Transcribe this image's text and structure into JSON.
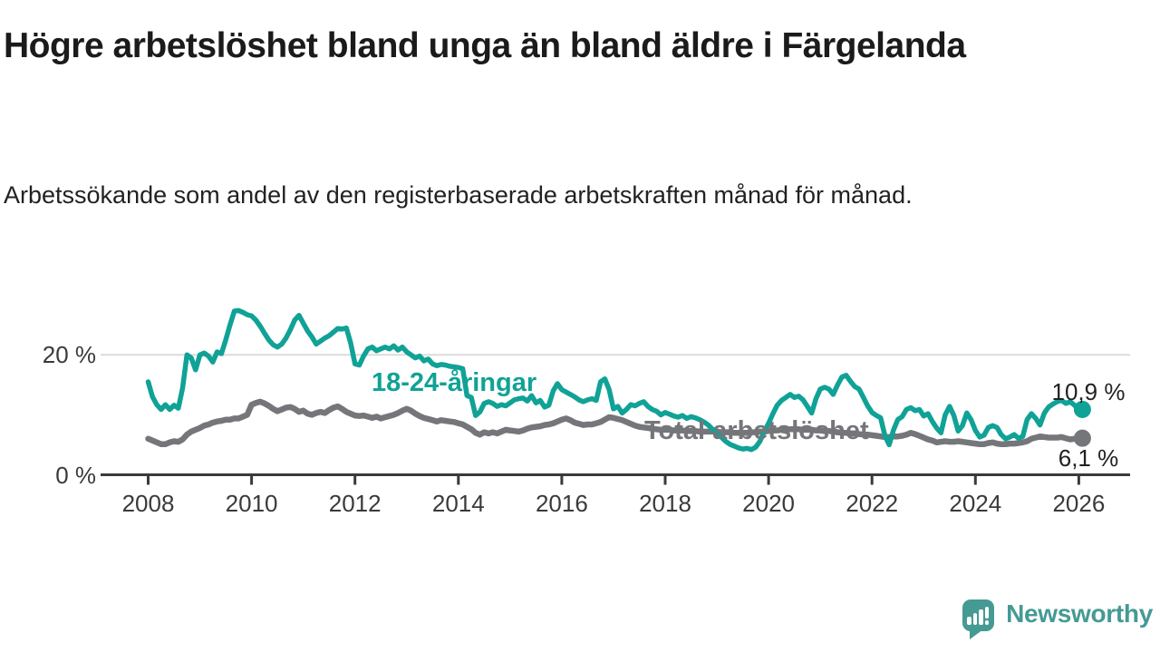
{
  "header": {
    "title": "Högre arbetslöshet bland unga än bland äldre i Färgelanda",
    "subtitle": "Arbetssökande som andel av den registerbaserade arbetskraften månad för månad."
  },
  "colors": {
    "young_series": "#10a296",
    "total_series": "#75767a",
    "axis": "#3a3a3a",
    "gridline": "#dcdcdc",
    "text": "#222222",
    "brand_teal": "#459a94"
  },
  "chart_data": {
    "type": "line",
    "title": "Högre arbetslöshet bland unga än bland äldre i Färgelanda",
    "xlabel": "",
    "ylabel": "Arbetssökande som andel av den registerbaserade arbetskraften",
    "x_unit": "year-month",
    "x_start": 2008.0,
    "points_per_year": 12,
    "xlim": [
      2008,
      2026.1
    ],
    "ylim": [
      0,
      28
    ],
    "grid": "horizontal line at 20 % only",
    "legend_position": "inline labels on lines",
    "x_ticks": [
      2008,
      2010,
      2012,
      2014,
      2016,
      2018,
      2020,
      2022,
      2024,
      2026
    ],
    "y_ticks": [
      {
        "value": 0,
        "label": "0 %"
      },
      {
        "value": 20,
        "label": "20 %"
      }
    ],
    "series": [
      {
        "name": "Total arbetslöshet",
        "label_text": "Total arbetslöshet",
        "end_label": "6,1 %",
        "end_value": 6.1,
        "color": "#75767a",
        "stroke_width": 6.5,
        "values": [
          6.0,
          5.7,
          5.4,
          5.1,
          5.1,
          5.4,
          5.6,
          5.5,
          5.9,
          6.7,
          7.2,
          7.5,
          7.8,
          8.2,
          8.4,
          8.7,
          8.9,
          9.0,
          9.2,
          9.2,
          9.4,
          9.4,
          9.7,
          10.0,
          11.7,
          12.0,
          12.2,
          11.9,
          11.5,
          11.0,
          10.6,
          10.9,
          11.2,
          11.3,
          11.0,
          10.5,
          10.7,
          10.2,
          10.0,
          10.3,
          10.5,
          10.3,
          10.8,
          11.2,
          11.4,
          11.0,
          10.5,
          10.2,
          9.9,
          9.8,
          9.9,
          9.7,
          9.5,
          9.7,
          9.4,
          9.6,
          9.8,
          10.0,
          10.3,
          10.7,
          11.0,
          10.7,
          10.2,
          9.8,
          9.5,
          9.3,
          9.1,
          8.9,
          9.1,
          9.0,
          8.9,
          8.8,
          8.6,
          8.4,
          8.0,
          7.6,
          7.0,
          6.7,
          7.1,
          6.9,
          7.1,
          6.9,
          7.2,
          7.5,
          7.4,
          7.3,
          7.2,
          7.4,
          7.7,
          7.9,
          8.0,
          8.1,
          8.3,
          8.4,
          8.6,
          8.9,
          9.2,
          9.4,
          9.1,
          8.7,
          8.5,
          8.3,
          8.4,
          8.4,
          8.6,
          8.8,
          9.2,
          9.6,
          9.5,
          9.3,
          9.1,
          8.8,
          8.5,
          8.2,
          8.0,
          7.9,
          7.8,
          7.7,
          7.6,
          7.5,
          7.5,
          7.5,
          7.4,
          7.4,
          7.4,
          7.3,
          7.3,
          7.3,
          7.2,
          7.2,
          7.2,
          7.2,
          7.2,
          7.1,
          7.1,
          7.1,
          7.0,
          7.0,
          7.0,
          7.0,
          7.1,
          7.1,
          7.2,
          7.2,
          7.3,
          7.4,
          7.4,
          7.5,
          7.5,
          7.6,
          7.6,
          7.6,
          7.5,
          7.5,
          7.5,
          7.4,
          7.4,
          7.3,
          7.3,
          7.2,
          7.1,
          7.0,
          7.0,
          6.9,
          6.9,
          6.8,
          6.7,
          6.7,
          6.6,
          6.5,
          6.4,
          6.3,
          6.3,
          6.4,
          6.4,
          6.5,
          6.7,
          7.0,
          6.8,
          6.5,
          6.2,
          5.9,
          5.7,
          5.4,
          5.5,
          5.6,
          5.5,
          5.5,
          5.6,
          5.5,
          5.4,
          5.3,
          5.2,
          5.1,
          5.1,
          5.3,
          5.4,
          5.2,
          5.1,
          5.1,
          5.2,
          5.2,
          5.3,
          5.4,
          5.6,
          6.0,
          6.2,
          6.4,
          6.3,
          6.2,
          6.2,
          6.2,
          6.3,
          6.1,
          5.9,
          6.0,
          6.1
        ]
      },
      {
        "name": "18-24-åringar",
        "label_text": "18-24-åringar",
        "end_label": "10,9 %",
        "end_value": 10.9,
        "color": "#10a296",
        "stroke_width": 5.5,
        "values": [
          15.5,
          13.0,
          11.7,
          10.9,
          11.7,
          10.9,
          11.6,
          11.1,
          14.5,
          20.0,
          19.5,
          17.5,
          20.0,
          20.3,
          19.8,
          18.8,
          20.5,
          20.2,
          22.5,
          25.0,
          27.3,
          27.4,
          27.1,
          26.7,
          26.5,
          25.8,
          24.8,
          23.6,
          22.5,
          21.7,
          21.3,
          21.8,
          22.8,
          24.2,
          25.8,
          26.6,
          25.3,
          24.0,
          23.0,
          21.8,
          22.3,
          22.8,
          23.2,
          23.8,
          24.4,
          24.3,
          24.5,
          22.0,
          18.5,
          18.3,
          19.8,
          21.0,
          21.3,
          20.7,
          21.0,
          21.3,
          21.0,
          21.5,
          20.8,
          21.3,
          20.5,
          20.0,
          19.5,
          19.8,
          19.0,
          19.3,
          18.5,
          18.2,
          18.4,
          18.3,
          18.1,
          18.0,
          17.9,
          17.7,
          13.2,
          12.9,
          9.9,
          10.5,
          11.9,
          12.2,
          11.9,
          11.4,
          11.7,
          11.5,
          12.0,
          12.5,
          12.7,
          12.8,
          12.3,
          13.2,
          12.0,
          12.4,
          11.3,
          11.6,
          14.0,
          15.2,
          14.2,
          13.8,
          13.4,
          13.0,
          12.5,
          12.2,
          12.5,
          12.7,
          12.4,
          15.5,
          16.0,
          14.2,
          11.0,
          11.4,
          10.3,
          10.9,
          11.7,
          11.5,
          11.9,
          12.2,
          11.4,
          10.9,
          10.6,
          10.0,
          10.4,
          10.1,
          9.8,
          9.6,
          9.9,
          9.4,
          9.7,
          9.5,
          9.2,
          8.8,
          8.3,
          7.6,
          7.0,
          6.3,
          5.6,
          5.1,
          4.8,
          4.5,
          4.3,
          4.4,
          4.2,
          4.6,
          5.6,
          7.2,
          8.6,
          10.2,
          11.6,
          12.4,
          12.9,
          13.4,
          12.9,
          13.1,
          12.5,
          11.4,
          10.3,
          12.7,
          14.3,
          14.6,
          14.3,
          13.4,
          15.0,
          16.3,
          16.6,
          15.6,
          14.7,
          14.3,
          12.9,
          11.5,
          10.4,
          9.9,
          9.5,
          6.5,
          5.0,
          7.5,
          9.2,
          9.7,
          10.9,
          11.2,
          10.7,
          10.9,
          9.8,
          10.2,
          8.9,
          7.8,
          7.0,
          10.0,
          11.4,
          9.9,
          7.3,
          8.2,
          10.3,
          9.2,
          7.4,
          6.3,
          6.6,
          7.9,
          8.2,
          7.9,
          6.7,
          6.0,
          6.3,
          6.7,
          6.1,
          6.4,
          9.2,
          10.2,
          9.4,
          8.3,
          10.3,
          11.3,
          11.8,
          12.2,
          12.4,
          11.9,
          12.2,
          11.6,
          10.9
        ]
      }
    ]
  },
  "footer": {
    "brand": "Newsworthy"
  }
}
